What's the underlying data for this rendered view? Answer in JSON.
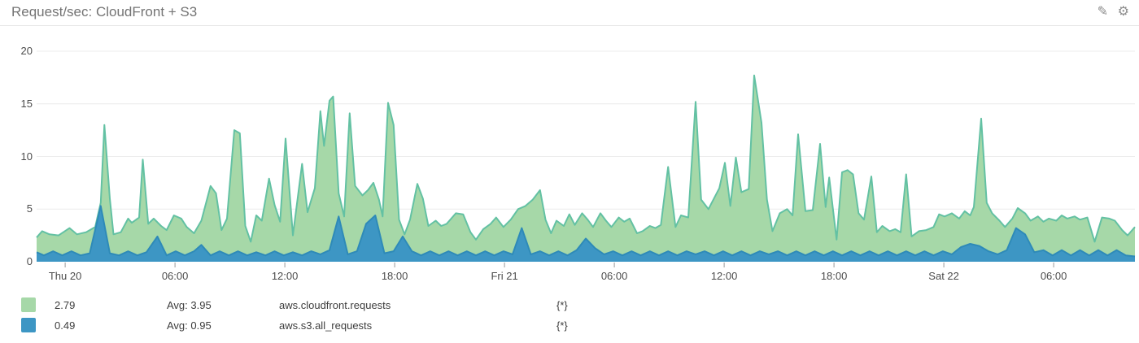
{
  "header": {
    "title": "Request/sec: CloudFront + S3",
    "edit_icon": "pencil-icon",
    "settings_icon": "gear-icon",
    "icon_glyphs": {
      "pencil": "✎",
      "gear": "⚙"
    }
  },
  "legend": {
    "rows": [
      {
        "value": "2.79",
        "avg": "Avg: 3.95",
        "metric": "aws.cloudfront.requests",
        "scope": "{*}",
        "color": "#a6d8a8"
      },
      {
        "value": "0.49",
        "avg": "Avg: 0.95",
        "metric": "aws.s3.all_requests",
        "scope": "{*}",
        "color": "#3d96c4"
      }
    ]
  },
  "chart_data": {
    "type": "area",
    "title": "Request/sec: CloudFront + S3",
    "xlabel": "",
    "ylabel": "",
    "ylim": [
      0,
      20
    ],
    "yticks": [
      0,
      5,
      10,
      15,
      20
    ],
    "x_unit": "hours-from-left-edge",
    "x_range": [
      0,
      60
    ],
    "grid": true,
    "grid_color": "#ececec",
    "tick_color": "#999999",
    "axis_text_color": "#4c4c4c",
    "legend_position": "bottom",
    "xticks": [
      {
        "t": 1.56,
        "label": "Thu 20"
      },
      {
        "t": 7.56,
        "label": "06:00"
      },
      {
        "t": 13.56,
        "label": "12:00"
      },
      {
        "t": 19.56,
        "label": "18:00"
      },
      {
        "t": 25.56,
        "label": "Fri 21"
      },
      {
        "t": 31.56,
        "label": "06:00"
      },
      {
        "t": 37.56,
        "label": "12:00"
      },
      {
        "t": 43.56,
        "label": "18:00"
      },
      {
        "t": 49.56,
        "label": "Sat 22"
      },
      {
        "t": 55.56,
        "label": "06:00"
      }
    ],
    "series": [
      {
        "name": "aws.cloudfront.requests",
        "scope": "{*}",
        "current": 2.79,
        "avg": 3.95,
        "fill": "#a6d8a8",
        "stroke": "#63c1a3",
        "points": [
          [
            0,
            2.3
          ],
          [
            0.3,
            2.9
          ],
          [
            0.7,
            2.6
          ],
          [
            1.2,
            2.5
          ],
          [
            1.8,
            3.2
          ],
          [
            2.2,
            2.6
          ],
          [
            2.7,
            2.8
          ],
          [
            3.2,
            3.3
          ],
          [
            3.5,
            5.6
          ],
          [
            3.7,
            13.0
          ],
          [
            4.0,
            6.0
          ],
          [
            4.2,
            2.6
          ],
          [
            4.6,
            2.8
          ],
          [
            5.0,
            4.1
          ],
          [
            5.2,
            3.7
          ],
          [
            5.6,
            4.2
          ],
          [
            5.8,
            9.7
          ],
          [
            6.1,
            3.6
          ],
          [
            6.4,
            4.1
          ],
          [
            6.8,
            3.4
          ],
          [
            7.1,
            3.0
          ],
          [
            7.5,
            4.4
          ],
          [
            7.9,
            4.1
          ],
          [
            8.2,
            3.3
          ],
          [
            8.6,
            2.7
          ],
          [
            9.0,
            3.9
          ],
          [
            9.5,
            7.2
          ],
          [
            9.8,
            6.5
          ],
          [
            10.1,
            3.0
          ],
          [
            10.4,
            4.1
          ],
          [
            10.8,
            12.5
          ],
          [
            11.1,
            12.2
          ],
          [
            11.4,
            3.4
          ],
          [
            11.7,
            1.9
          ],
          [
            12.0,
            4.4
          ],
          [
            12.3,
            3.9
          ],
          [
            12.7,
            7.9
          ],
          [
            13.0,
            5.4
          ],
          [
            13.3,
            3.8
          ],
          [
            13.6,
            11.7
          ],
          [
            14.0,
            2.5
          ],
          [
            14.5,
            9.3
          ],
          [
            14.8,
            4.7
          ],
          [
            15.2,
            7.0
          ],
          [
            15.5,
            14.3
          ],
          [
            15.7,
            11.0
          ],
          [
            16.0,
            15.3
          ],
          [
            16.2,
            15.7
          ],
          [
            16.5,
            6.5
          ],
          [
            16.8,
            4.3
          ],
          [
            17.1,
            14.1
          ],
          [
            17.4,
            7.2
          ],
          [
            17.8,
            6.3
          ],
          [
            18.1,
            6.8
          ],
          [
            18.4,
            7.5
          ],
          [
            18.7,
            5.9
          ],
          [
            18.9,
            4.3
          ],
          [
            19.2,
            15.1
          ],
          [
            19.5,
            13.0
          ],
          [
            19.8,
            4.0
          ],
          [
            20.1,
            2.6
          ],
          [
            20.4,
            4.0
          ],
          [
            20.8,
            7.4
          ],
          [
            21.1,
            6.0
          ],
          [
            21.4,
            3.4
          ],
          [
            21.8,
            3.9
          ],
          [
            22.1,
            3.4
          ],
          [
            22.4,
            3.6
          ],
          [
            22.9,
            4.6
          ],
          [
            23.3,
            4.5
          ],
          [
            23.7,
            2.8
          ],
          [
            24.0,
            2.1
          ],
          [
            24.4,
            3.1
          ],
          [
            24.8,
            3.6
          ],
          [
            25.1,
            4.2
          ],
          [
            25.5,
            3.3
          ],
          [
            25.9,
            4.0
          ],
          [
            26.3,
            5.0
          ],
          [
            26.7,
            5.3
          ],
          [
            27.1,
            5.9
          ],
          [
            27.5,
            6.8
          ],
          [
            27.8,
            4.0
          ],
          [
            28.1,
            2.7
          ],
          [
            28.4,
            3.9
          ],
          [
            28.8,
            3.4
          ],
          [
            29.1,
            4.5
          ],
          [
            29.4,
            3.5
          ],
          [
            29.8,
            4.6
          ],
          [
            30.1,
            4.0
          ],
          [
            30.4,
            3.3
          ],
          [
            30.8,
            4.6
          ],
          [
            31.1,
            3.9
          ],
          [
            31.4,
            3.3
          ],
          [
            31.8,
            4.2
          ],
          [
            32.1,
            3.8
          ],
          [
            32.4,
            4.1
          ],
          [
            32.8,
            2.7
          ],
          [
            33.1,
            2.9
          ],
          [
            33.5,
            3.4
          ],
          [
            33.8,
            3.2
          ],
          [
            34.1,
            3.5
          ],
          [
            34.5,
            9.0
          ],
          [
            34.9,
            3.3
          ],
          [
            35.2,
            4.4
          ],
          [
            35.6,
            4.2
          ],
          [
            36.0,
            15.2
          ],
          [
            36.3,
            5.9
          ],
          [
            36.7,
            5.0
          ],
          [
            37.0,
            6.0
          ],
          [
            37.3,
            7.0
          ],
          [
            37.6,
            9.4
          ],
          [
            37.9,
            5.3
          ],
          [
            38.2,
            9.9
          ],
          [
            38.5,
            6.6
          ],
          [
            38.9,
            6.9
          ],
          [
            39.2,
            17.7
          ],
          [
            39.6,
            13.2
          ],
          [
            39.9,
            5.9
          ],
          [
            40.2,
            2.9
          ],
          [
            40.6,
            4.6
          ],
          [
            41.0,
            5.0
          ],
          [
            41.3,
            4.4
          ],
          [
            41.6,
            12.1
          ],
          [
            42.0,
            4.8
          ],
          [
            42.4,
            4.9
          ],
          [
            42.8,
            11.2
          ],
          [
            43.1,
            5.2
          ],
          [
            43.3,
            8.0
          ],
          [
            43.7,
            2.1
          ],
          [
            44.0,
            8.5
          ],
          [
            44.3,
            8.7
          ],
          [
            44.6,
            8.3
          ],
          [
            44.9,
            4.6
          ],
          [
            45.2,
            4.0
          ],
          [
            45.6,
            8.1
          ],
          [
            45.9,
            2.8
          ],
          [
            46.2,
            3.4
          ],
          [
            46.6,
            2.9
          ],
          [
            46.9,
            3.1
          ],
          [
            47.2,
            2.8
          ],
          [
            47.5,
            8.3
          ],
          [
            47.8,
            2.4
          ],
          [
            48.2,
            2.9
          ],
          [
            48.6,
            3.0
          ],
          [
            49.0,
            3.3
          ],
          [
            49.3,
            4.5
          ],
          [
            49.6,
            4.3
          ],
          [
            50.0,
            4.6
          ],
          [
            50.4,
            4.1
          ],
          [
            50.7,
            4.8
          ],
          [
            51.0,
            4.4
          ],
          [
            51.2,
            5.2
          ],
          [
            51.6,
            13.6
          ],
          [
            51.9,
            5.6
          ],
          [
            52.2,
            4.6
          ],
          [
            52.6,
            3.9
          ],
          [
            52.9,
            3.3
          ],
          [
            53.3,
            4.1
          ],
          [
            53.6,
            5.1
          ],
          [
            54.0,
            4.6
          ],
          [
            54.3,
            3.9
          ],
          [
            54.7,
            4.3
          ],
          [
            55.0,
            3.8
          ],
          [
            55.3,
            4.1
          ],
          [
            55.7,
            3.9
          ],
          [
            56.0,
            4.4
          ],
          [
            56.3,
            4.1
          ],
          [
            56.7,
            4.3
          ],
          [
            57.0,
            4.0
          ],
          [
            57.4,
            4.2
          ],
          [
            57.8,
            1.9
          ],
          [
            58.2,
            4.2
          ],
          [
            58.6,
            4.1
          ],
          [
            58.9,
            3.9
          ],
          [
            59.3,
            3.0
          ],
          [
            59.6,
            2.5
          ],
          [
            60,
            3.3
          ]
        ]
      },
      {
        "name": "aws.s3.all_requests",
        "scope": "{*}",
        "current": 0.49,
        "avg": 0.95,
        "fill": "#3d96c4",
        "stroke": "#2e8ab8",
        "points": [
          [
            0,
            0.9
          ],
          [
            0.4,
            0.6
          ],
          [
            0.9,
            1.0
          ],
          [
            1.4,
            0.6
          ],
          [
            1.9,
            1.0
          ],
          [
            2.4,
            0.6
          ],
          [
            2.9,
            0.8
          ],
          [
            3.5,
            5.3
          ],
          [
            4.0,
            0.8
          ],
          [
            4.5,
            0.6
          ],
          [
            5.0,
            1.0
          ],
          [
            5.5,
            0.6
          ],
          [
            6.0,
            0.9
          ],
          [
            6.6,
            2.4
          ],
          [
            7.1,
            0.6
          ],
          [
            7.6,
            1.0
          ],
          [
            8.1,
            0.6
          ],
          [
            8.6,
            1.0
          ],
          [
            9.0,
            1.6
          ],
          [
            9.5,
            0.6
          ],
          [
            10.0,
            1.0
          ],
          [
            10.5,
            0.6
          ],
          [
            11.0,
            1.0
          ],
          [
            11.5,
            0.6
          ],
          [
            12.0,
            0.9
          ],
          [
            12.5,
            0.6
          ],
          [
            13.0,
            1.0
          ],
          [
            13.5,
            0.6
          ],
          [
            14.0,
            0.9
          ],
          [
            14.5,
            0.6
          ],
          [
            15.0,
            1.0
          ],
          [
            15.5,
            0.7
          ],
          [
            16.0,
            1.1
          ],
          [
            16.5,
            4.3
          ],
          [
            17.0,
            0.7
          ],
          [
            17.5,
            1.0
          ],
          [
            18.0,
            3.6
          ],
          [
            18.5,
            4.4
          ],
          [
            19.0,
            0.8
          ],
          [
            19.5,
            1.0
          ],
          [
            20.0,
            2.4
          ],
          [
            20.5,
            1.0
          ],
          [
            21.0,
            0.6
          ],
          [
            21.5,
            1.0
          ],
          [
            22.0,
            0.6
          ],
          [
            22.5,
            1.0
          ],
          [
            23.0,
            0.6
          ],
          [
            23.5,
            1.0
          ],
          [
            24.0,
            0.6
          ],
          [
            24.5,
            1.0
          ],
          [
            25.0,
            0.6
          ],
          [
            25.5,
            1.0
          ],
          [
            26.0,
            0.7
          ],
          [
            26.5,
            3.2
          ],
          [
            27.0,
            0.7
          ],
          [
            27.5,
            1.0
          ],
          [
            28.0,
            0.6
          ],
          [
            28.5,
            1.0
          ],
          [
            29.0,
            0.6
          ],
          [
            29.5,
            1.1
          ],
          [
            30.0,
            2.2
          ],
          [
            30.5,
            1.3
          ],
          [
            31.0,
            0.7
          ],
          [
            31.5,
            1.0
          ],
          [
            32.0,
            0.6
          ],
          [
            32.5,
            1.0
          ],
          [
            33.0,
            0.6
          ],
          [
            33.5,
            1.0
          ],
          [
            34.0,
            0.6
          ],
          [
            34.5,
            1.0
          ],
          [
            35.0,
            0.6
          ],
          [
            35.5,
            1.0
          ],
          [
            36.0,
            0.7
          ],
          [
            36.5,
            1.0
          ],
          [
            37.0,
            0.6
          ],
          [
            37.5,
            1.0
          ],
          [
            38.0,
            0.6
          ],
          [
            38.5,
            1.0
          ],
          [
            39.0,
            0.6
          ],
          [
            39.5,
            1.0
          ],
          [
            40.0,
            0.7
          ],
          [
            40.5,
            1.0
          ],
          [
            41.0,
            0.6
          ],
          [
            41.5,
            1.0
          ],
          [
            42.0,
            0.6
          ],
          [
            42.5,
            1.0
          ],
          [
            43.0,
            0.6
          ],
          [
            43.5,
            1.0
          ],
          [
            44.0,
            0.6
          ],
          [
            44.5,
            1.0
          ],
          [
            45.0,
            0.6
          ],
          [
            45.5,
            1.0
          ],
          [
            46.0,
            0.6
          ],
          [
            46.5,
            1.0
          ],
          [
            47.0,
            0.6
          ],
          [
            47.5,
            1.0
          ],
          [
            48.0,
            0.6
          ],
          [
            48.5,
            1.0
          ],
          [
            49.0,
            0.6
          ],
          [
            49.5,
            1.0
          ],
          [
            50.0,
            0.7
          ],
          [
            50.5,
            1.4
          ],
          [
            51.0,
            1.7
          ],
          [
            51.5,
            1.5
          ],
          [
            52.0,
            1.0
          ],
          [
            52.5,
            0.7
          ],
          [
            53.0,
            1.1
          ],
          [
            53.5,
            3.2
          ],
          [
            54.0,
            2.6
          ],
          [
            54.5,
            0.9
          ],
          [
            55.0,
            1.1
          ],
          [
            55.5,
            0.6
          ],
          [
            56.0,
            1.1
          ],
          [
            56.5,
            0.6
          ],
          [
            57.0,
            1.1
          ],
          [
            57.5,
            0.6
          ],
          [
            58.0,
            1.1
          ],
          [
            58.5,
            0.6
          ],
          [
            59.0,
            1.1
          ],
          [
            59.5,
            0.6
          ],
          [
            60,
            0.5
          ]
        ]
      }
    ]
  }
}
